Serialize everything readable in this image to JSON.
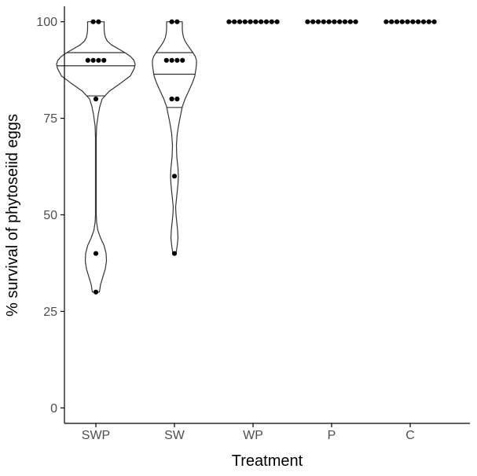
{
  "chart_data": {
    "type": "violin",
    "title": "",
    "xlabel": "Treatment",
    "ylabel": "% survival of phytoseiid eggs",
    "ylim": [
      -4,
      104
    ],
    "yticks": [
      0,
      25,
      50,
      75,
      100
    ],
    "categories": [
      "SWP",
      "SW",
      "WP",
      "P",
      "C"
    ],
    "grid": false,
    "colors": {
      "outline": "#333333",
      "points": "#000000",
      "axis": "#000000",
      "tick_text": "#4d4d4d"
    },
    "groups": [
      {
        "category": "SWP",
        "points": [
          100,
          100,
          90,
          90,
          90,
          90,
          80,
          40,
          30
        ],
        "quantiles": [
          80.8,
          88.6,
          92.0
        ],
        "violin_profile": [
          [
            30,
            0.09
          ],
          [
            32,
            0.12
          ],
          [
            34,
            0.18
          ],
          [
            36,
            0.24
          ],
          [
            38,
            0.27
          ],
          [
            40,
            0.26
          ],
          [
            42,
            0.21
          ],
          [
            44,
            0.12
          ],
          [
            46,
            0.05
          ],
          [
            48,
            0.02
          ],
          [
            50,
            0.01
          ],
          [
            55,
            0.01
          ],
          [
            60,
            0.01
          ],
          [
            65,
            0.01
          ],
          [
            70,
            0.01
          ],
          [
            73,
            0.02
          ],
          [
            76,
            0.06
          ],
          [
            78,
            0.1
          ],
          [
            80,
            0.16
          ],
          [
            82,
            0.34
          ],
          [
            84,
            0.62
          ],
          [
            86,
            0.88
          ],
          [
            88,
            0.98
          ],
          [
            89,
            1.0
          ],
          [
            90,
            0.97
          ],
          [
            91,
            0.88
          ],
          [
            92,
            0.74
          ],
          [
            93,
            0.57
          ],
          [
            94,
            0.4
          ],
          [
            95,
            0.29
          ],
          [
            96,
            0.24
          ],
          [
            97,
            0.22
          ],
          [
            98,
            0.21
          ],
          [
            99,
            0.21
          ],
          [
            100,
            0.21
          ]
        ]
      },
      {
        "category": "SW",
        "points": [
          100,
          100,
          90,
          90,
          90,
          90,
          80,
          80,
          60,
          40
        ],
        "quantiles": [
          77.8,
          86.4,
          92.0
        ],
        "violin_profile": [
          [
            40,
            0.04
          ],
          [
            42,
            0.07
          ],
          [
            44,
            0.09
          ],
          [
            46,
            0.08
          ],
          [
            48,
            0.06
          ],
          [
            50,
            0.04
          ],
          [
            52,
            0.03
          ],
          [
            55,
            0.06
          ],
          [
            58,
            0.09
          ],
          [
            60,
            0.1
          ],
          [
            62,
            0.09
          ],
          [
            65,
            0.06
          ],
          [
            68,
            0.05
          ],
          [
            71,
            0.07
          ],
          [
            74,
            0.12
          ],
          [
            76,
            0.16
          ],
          [
            78,
            0.2
          ],
          [
            80,
            0.27
          ],
          [
            82,
            0.36
          ],
          [
            84,
            0.45
          ],
          [
            86,
            0.52
          ],
          [
            88,
            0.55
          ],
          [
            89,
            0.56
          ],
          [
            90,
            0.56
          ],
          [
            91,
            0.53
          ],
          [
            92,
            0.47
          ],
          [
            93,
            0.4
          ],
          [
            94,
            0.33
          ],
          [
            95,
            0.27
          ],
          [
            96,
            0.23
          ],
          [
            97,
            0.21
          ],
          [
            98,
            0.2
          ],
          [
            99,
            0.2
          ],
          [
            100,
            0.2
          ]
        ]
      },
      {
        "category": "WP",
        "points": [
          100,
          100,
          100,
          100,
          100,
          100,
          100,
          100,
          100,
          100
        ]
      },
      {
        "category": "P",
        "points": [
          100,
          100,
          100,
          100,
          100,
          100,
          100,
          100,
          100,
          100
        ]
      },
      {
        "category": "C",
        "points": [
          100,
          100,
          100,
          100,
          100,
          100,
          100,
          100,
          100,
          100
        ]
      }
    ]
  }
}
